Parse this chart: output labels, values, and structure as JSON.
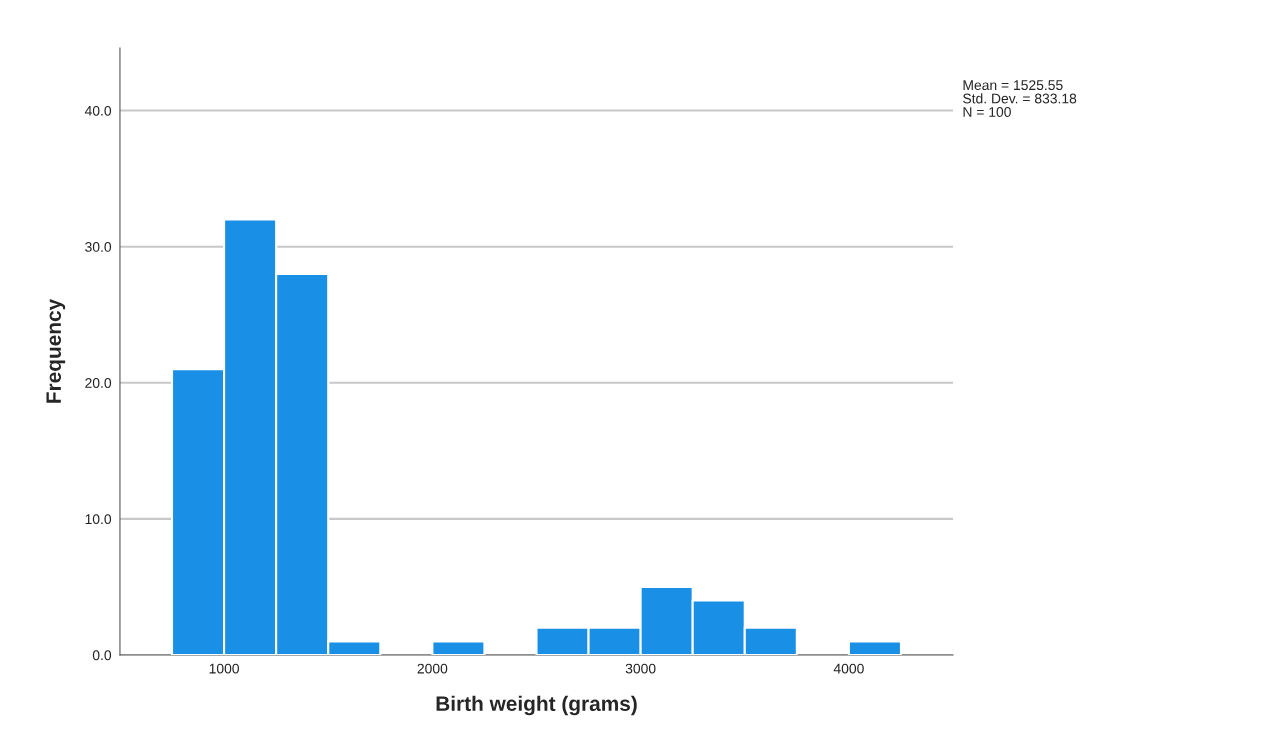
{
  "chart_data": {
    "type": "histogram",
    "xlabel": "Birth weight (grams)",
    "ylabel": "Frequency",
    "bins": [
      750,
      1000,
      1250,
      1500,
      1750,
      2000,
      2250,
      2500,
      2750,
      3000,
      3250,
      3500,
      3750,
      4000,
      4250
    ],
    "values": [
      21,
      32,
      28,
      1,
      0,
      1,
      0,
      2,
      2,
      5,
      4,
      2,
      0,
      1
    ],
    "color": "#1a8fe6",
    "xlim": [
      500,
      4500
    ],
    "xticks": [
      1000,
      2000,
      3000,
      4000
    ],
    "ylim": [
      0,
      44.6
    ],
    "yticks": [
      {
        "value": 0,
        "label": "0.0"
      },
      {
        "value": 10,
        "label": "10.0"
      },
      {
        "value": 20,
        "label": "20.0"
      },
      {
        "value": 30,
        "label": "30.0"
      },
      {
        "value": 40,
        "label": "40.0"
      }
    ],
    "grid": "y",
    "annotations": [
      "Mean = 1525.55",
      "Std. Dev. = 833.18",
      "N = 100"
    ]
  }
}
